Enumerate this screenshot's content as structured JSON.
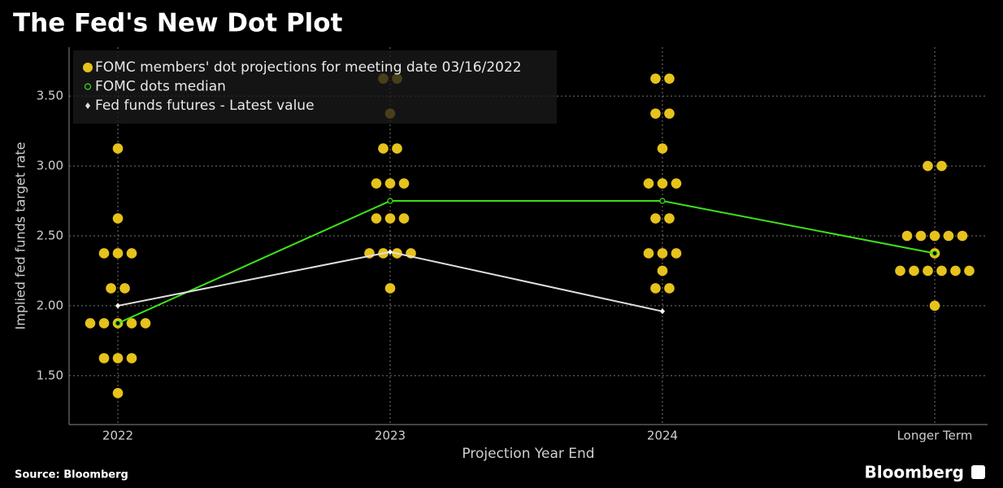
{
  "chart_data": {
    "type": "dot-plot",
    "title": "The Fed's New Dot Plot",
    "x_label": "Projection Year End",
    "y_label": "Implied fed funds target rate",
    "source": "Source: Bloomberg",
    "brand": "Bloomberg",
    "categories": [
      "2022",
      "2023",
      "2024",
      "Longer Term"
    ],
    "ylim": [
      1.15,
      3.85
    ],
    "yticks": [
      {
        "value": 1.5,
        "label": "1.50"
      },
      {
        "value": 2,
        "label": "2.00"
      },
      {
        "value": 2.5,
        "label": "2.50"
      },
      {
        "value": 3,
        "label": "3.00"
      },
      {
        "value": 3.5,
        "label": "3.50"
      }
    ],
    "grid": true,
    "series": [
      {
        "name": "FOMC members' dot projections for meeting date 03/16/2022",
        "color": "#e6c21c",
        "values": [
          [
            3.125,
            2.625,
            2.375,
            2.375,
            2.375,
            2.125,
            2.125,
            1.875,
            1.875,
            1.875,
            1.875,
            1.875,
            1.625,
            1.625,
            1.625,
            1.375
          ],
          [
            3.625,
            3.625,
            3.375,
            3.125,
            3.125,
            2.875,
            2.875,
            2.875,
            2.625,
            2.625,
            2.625,
            2.375,
            2.375,
            2.375,
            2.375,
            2.125
          ],
          [
            3.625,
            3.625,
            3.375,
            3.375,
            3.125,
            2.875,
            2.875,
            2.875,
            2.625,
            2.625,
            2.375,
            2.375,
            2.375,
            2.25,
            2.125,
            2.125
          ],
          [
            3.0,
            3.0,
            2.5,
            2.5,
            2.5,
            2.5,
            2.5,
            2.375,
            2.25,
            2.25,
            2.25,
            2.25,
            2.25,
            2.25,
            2.0
          ]
        ]
      },
      {
        "name": "FOMC dots median",
        "color": "#3ee01a",
        "values": [
          1.875,
          2.75,
          2.75,
          2.375
        ]
      },
      {
        "name": "Fed funds futures - Latest value",
        "color": "#e0e0e0",
        "values": [
          2.0,
          2.385,
          1.96,
          null
        ]
      }
    ]
  }
}
